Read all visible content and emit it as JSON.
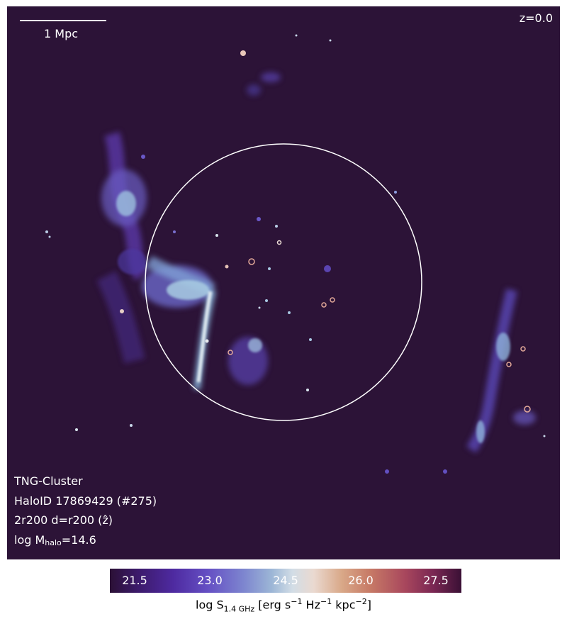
{
  "panel": {
    "scalebar_label": "1 Mpc",
    "redshift_label": "z=0.0",
    "info_line1": "TNG-Cluster",
    "info_line2": "HaloID 17869429 (#275)",
    "info_line3": "2r200 d=r200 (ẑ)",
    "info_line4_prefix": "log M",
    "info_line4_sub": "halo",
    "info_line4_suffix": "=14.6",
    "background_color": "#2c1337",
    "circle_color": "#ffffff"
  },
  "colorbar": {
    "ticks": [
      "21.5",
      "23.0",
      "24.5",
      "26.0",
      "27.5"
    ],
    "label_prefix": "log S",
    "label_sub": "1.4 GHz",
    "label_part1": " [erg s",
    "label_sup1": "−1",
    "label_part2": " Hz",
    "label_sup2": "−1",
    "label_part3": " kpc",
    "label_sup3": "−2",
    "label_part4": "]"
  }
}
